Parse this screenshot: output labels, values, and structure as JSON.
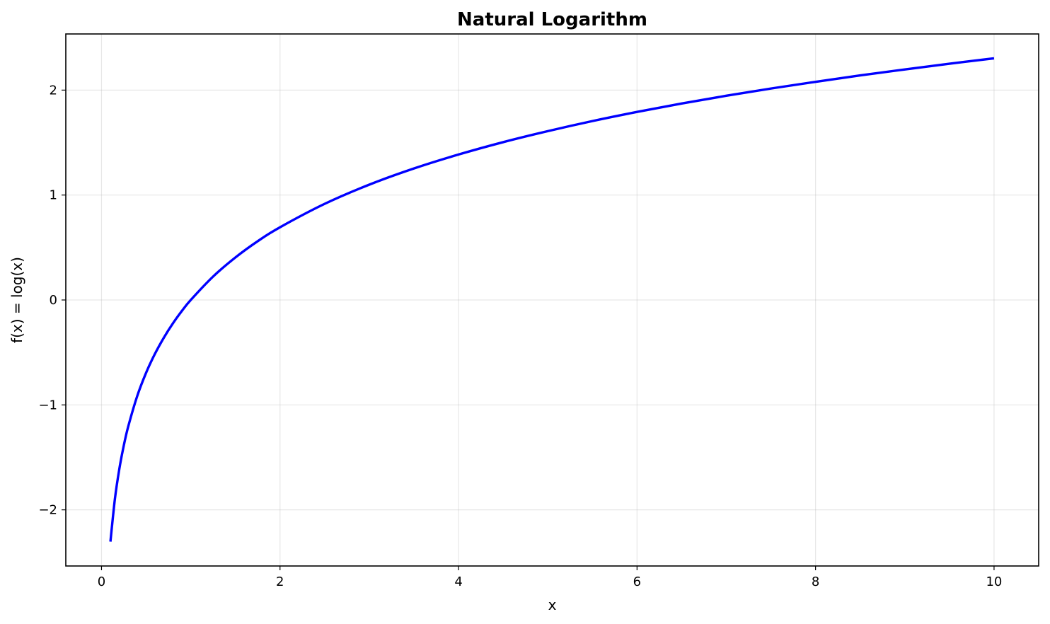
{
  "chart_data": {
    "type": "line",
    "title": "Natural Logarithm",
    "xlabel": "x",
    "ylabel": "f(x) = log(x)",
    "xlim": [
      -0.4,
      10.5
    ],
    "ylim": [
      -2.535,
      2.535
    ],
    "grid": true,
    "legend": "none",
    "x_ticks": [
      {
        "value": 0,
        "label": "0"
      },
      {
        "value": 2,
        "label": "2"
      },
      {
        "value": 4,
        "label": "4"
      },
      {
        "value": 6,
        "label": "6"
      },
      {
        "value": 8,
        "label": "8"
      },
      {
        "value": 10,
        "label": "10"
      }
    ],
    "y_ticks": [
      {
        "value": -2,
        "label": "−2"
      },
      {
        "value": -1,
        "label": "−1"
      },
      {
        "value": 0,
        "label": "0"
      },
      {
        "value": 1,
        "label": "1"
      },
      {
        "value": 2,
        "label": "2"
      }
    ],
    "series": [
      {
        "color": "#0000ff",
        "x": [
          0.1,
          0.15,
          0.2,
          0.25,
          0.3,
          0.4,
          0.5,
          0.6,
          0.7,
          0.8,
          0.9,
          1.0,
          1.25,
          1.5,
          1.75,
          2.0,
          2.5,
          3.0,
          3.5,
          4.0,
          4.5,
          5.0,
          5.5,
          6.0,
          6.5,
          7.0,
          7.5,
          8.0,
          8.5,
          9.0,
          9.5,
          10.0
        ],
        "y": [
          -2.303,
          -1.897,
          -1.609,
          -1.386,
          -1.204,
          -0.916,
          -0.693,
          -0.511,
          -0.357,
          -0.223,
          -0.105,
          0.0,
          0.223,
          0.405,
          0.56,
          0.693,
          0.916,
          1.099,
          1.253,
          1.386,
          1.504,
          1.609,
          1.705,
          1.792,
          1.872,
          1.946,
          2.015,
          2.079,
          2.14,
          2.197,
          2.251,
          2.303
        ]
      }
    ]
  }
}
